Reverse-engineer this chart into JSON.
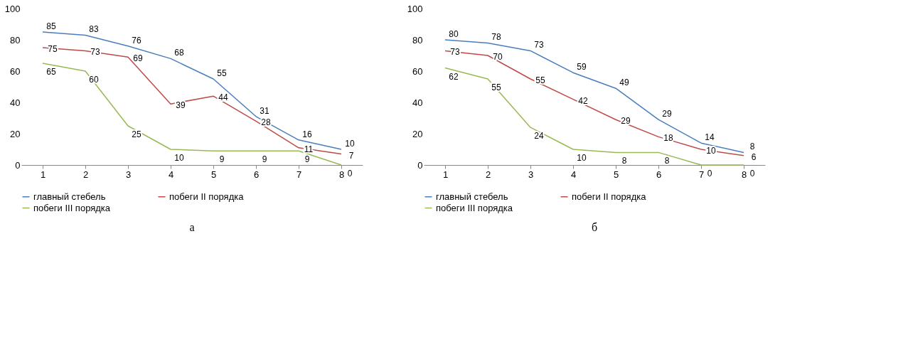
{
  "chart_data": [
    {
      "type": "line",
      "categories": [
        "1",
        "2",
        "3",
        "4",
        "5",
        "6",
        "7",
        "8"
      ],
      "ylim": [
        0,
        100
      ],
      "yticks": [
        0,
        20,
        40,
        60,
        80,
        100
      ],
      "grid": false,
      "legend": "bottom",
      "data_labels": true,
      "annotations": [
        "а"
      ],
      "series": [
        {
          "name": "главный стебель",
          "color": "#4a7ebb",
          "values": [
            85,
            83,
            76,
            68,
            55,
            31,
            16,
            10
          ]
        },
        {
          "name": "побеги  II порядка",
          "color": "#be4b48",
          "values": [
            75,
            73,
            69,
            39,
            44,
            28,
            11,
            7
          ]
        },
        {
          "name": "побеги  III порядка",
          "color": "#98b954",
          "values": [
            65,
            60,
            25,
            10,
            9,
            9,
            9,
            0
          ]
        }
      ]
    },
    {
      "type": "line",
      "categories": [
        "1",
        "2",
        "3",
        "4",
        "5",
        "6",
        "7",
        "8"
      ],
      "ylim": [
        0,
        100
      ],
      "yticks": [
        0,
        20,
        40,
        60,
        80,
        100
      ],
      "grid": false,
      "legend": "bottom",
      "data_labels": true,
      "annotations": [
        "б"
      ],
      "series": [
        {
          "name": "главный стебель",
          "color": "#4a7ebb",
          "values": [
            80,
            78,
            73,
            59,
            49,
            29,
            14,
            8
          ]
        },
        {
          "name": "побеги  II порядка",
          "color": "#be4b48",
          "values": [
            73,
            70,
            55,
            42,
            29,
            18,
            10,
            6
          ]
        },
        {
          "name": "побеги  III порядка",
          "color": "#98b954",
          "values": [
            62,
            55,
            24,
            10,
            8,
            8,
            0,
            0
          ]
        }
      ]
    }
  ]
}
